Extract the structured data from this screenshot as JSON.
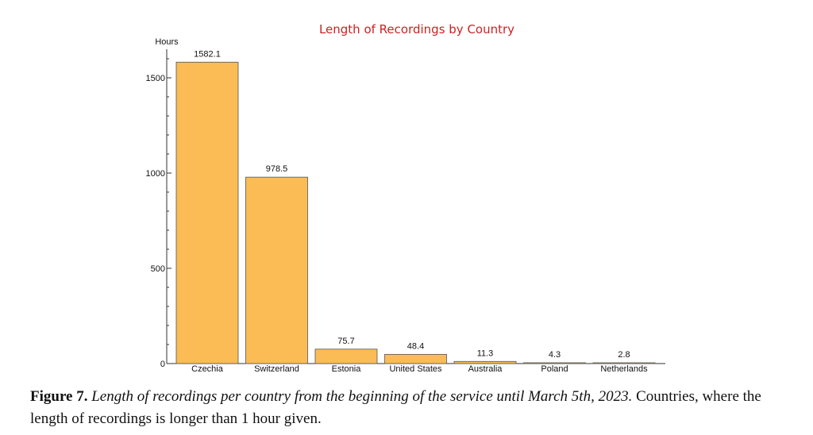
{
  "chart_data": {
    "type": "bar",
    "title": "Length of Recordings by Country",
    "ylabel": "Hours",
    "xlabel": "",
    "categories": [
      "Czechia",
      "Switzerland",
      "Estonia",
      "United States",
      "Australia",
      "Poland",
      "Netherlands"
    ],
    "values": [
      1582.1,
      978.5,
      75.7,
      48.4,
      11.3,
      4.3,
      2.8
    ],
    "value_labels": [
      "1582.1",
      "978.5",
      "75.7",
      "48.4",
      "11.3",
      "4.3",
      "2.8"
    ],
    "ylim": [
      0,
      1650
    ],
    "yticks": [
      0,
      500,
      1000,
      1500
    ],
    "grid": false,
    "bar_color": "#fbbc55",
    "bar_edge_color": "#555555",
    "title_color": "#cc2222"
  },
  "caption": {
    "figure_number": "Figure 7.",
    "italic_text": "Length of recordings per country from the beginning of the service until March 5th, 2023.",
    "plain_text": "Countries, where the length of recordings is longer than 1 hour given."
  }
}
